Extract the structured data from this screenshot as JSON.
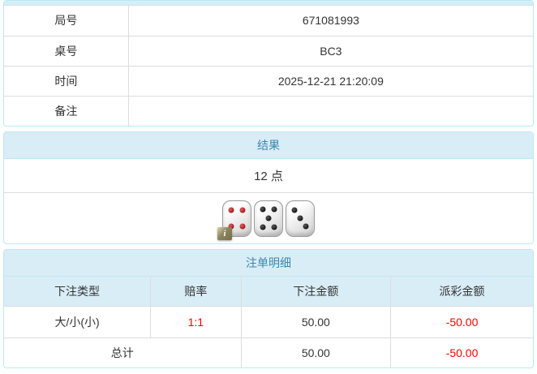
{
  "colors": {
    "panel_border": "#bce8f1",
    "heading_bg": "#d9edf7",
    "heading_text": "#3a87ad",
    "cell_border": "#dddddd",
    "text": "#333333",
    "negative": "#ff0000"
  },
  "info_table": {
    "rows": [
      {
        "label": "局号",
        "value": "671081993"
      },
      {
        "label": "桌号",
        "value": "BC3"
      },
      {
        "label": "时间",
        "value": "2025-12-21 21:20:09"
      },
      {
        "label": "备注",
        "value": ""
      }
    ]
  },
  "result_panel": {
    "title": "结果",
    "points": "12 点",
    "dice": [
      {
        "value": 4,
        "pip_color": "red"
      },
      {
        "value": 5,
        "pip_color": "black"
      },
      {
        "value": 3,
        "pip_color": "black"
      }
    ],
    "info_badge": "i"
  },
  "bets_panel": {
    "title": "注单明细",
    "columns": [
      "下注类型",
      "赔率",
      "下注金额",
      "派彩金额"
    ],
    "rows": [
      {
        "bet_type": "大/小(小)",
        "odds": "1:1",
        "bet_amount": "50.00",
        "payout": "-50.00"
      }
    ],
    "total": {
      "label": "总计",
      "bet_amount": "50.00",
      "payout": "-50.00"
    }
  }
}
